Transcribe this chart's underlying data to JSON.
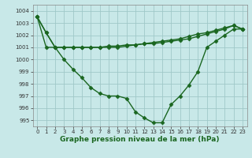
{
  "x": [
    0,
    1,
    2,
    3,
    4,
    5,
    6,
    7,
    8,
    9,
    10,
    11,
    12,
    13,
    14,
    15,
    16,
    17,
    18,
    19,
    20,
    21,
    22,
    23
  ],
  "line1": [
    1003.5,
    1002.2,
    1001.0,
    1001.0,
    1001.0,
    1001.0,
    1001.0,
    1001.0,
    1001.1,
    1001.1,
    1001.2,
    1001.2,
    1001.3,
    1001.3,
    1001.4,
    1001.5,
    1001.6,
    1001.7,
    1001.9,
    1002.1,
    1002.3,
    1002.5,
    1002.8,
    1002.5
  ],
  "line2": [
    1003.5,
    1002.2,
    1001.0,
    1000.0,
    999.2,
    998.5,
    997.7,
    997.2,
    997.0,
    997.0,
    996.8,
    995.7,
    995.2,
    994.8,
    994.8,
    996.3,
    997.0,
    997.9,
    999.0,
    1001.0,
    1001.5,
    1002.0,
    1002.5,
    1002.5
  ],
  "line3": [
    1003.5,
    1001.0,
    1001.0,
    1001.0,
    1001.0,
    1001.0,
    1001.0,
    1001.0,
    1001.0,
    1001.0,
    1001.1,
    1001.2,
    1001.3,
    1001.4,
    1001.5,
    1001.6,
    1001.7,
    1001.9,
    1002.1,
    1002.2,
    1002.4,
    1002.6,
    1002.8,
    1002.5
  ],
  "bg_color": "#c8e8e8",
  "grid_color": "#a0c8c8",
  "line_color": "#1a6620",
  "marker": "D",
  "markersize": 2.5,
  "linewidth": 1.0,
  "xlabel": "Graphe pression niveau de la mer (hPa)",
  "ylim": [
    994.5,
    1004.5
  ],
  "yticks": [
    995,
    996,
    997,
    998,
    999,
    1000,
    1001,
    1002,
    1003,
    1004
  ],
  "xticks": [
    0,
    1,
    2,
    3,
    4,
    5,
    6,
    7,
    8,
    9,
    10,
    11,
    12,
    13,
    14,
    15,
    16,
    17,
    18,
    19,
    20,
    21,
    22,
    23
  ],
  "tick_fontsize": 5.0,
  "xlabel_fontsize": 6.5
}
